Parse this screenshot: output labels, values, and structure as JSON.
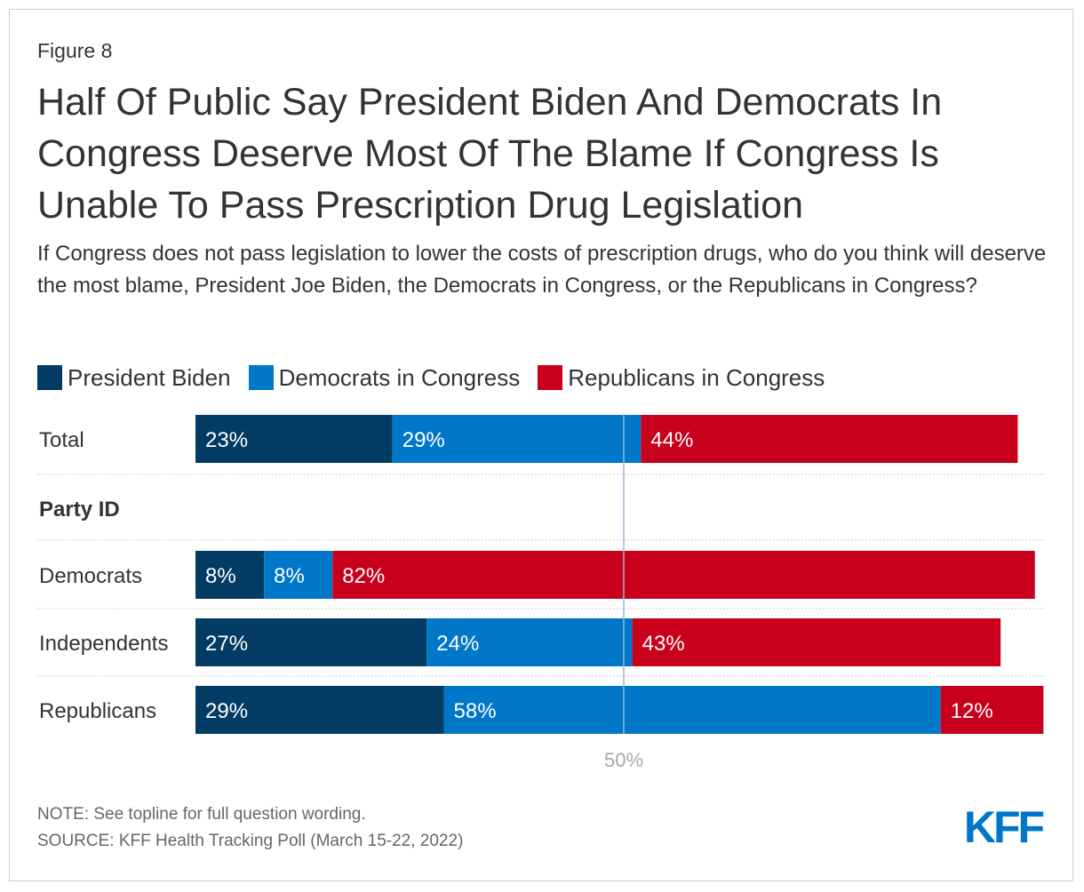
{
  "figure_label": "Figure 8",
  "title": "Half Of Public Say President Biden And Democrats In Congress Deserve Most Of The Blame If Congress Is Unable To Pass Prescription Drug Legislation",
  "subtitle": "If Congress does not pass legislation to lower the costs of prescription drugs, who do you think will deserve the most blame, President Joe Biden, the Democrats in Congress, or the Republicans in Congress?",
  "note": "NOTE: See topline for full question wording.",
  "source": "SOURCE: KFF Health Tracking Poll (March 15-22, 2022)",
  "logo": "KFF",
  "colors": {
    "biden": "#023b63",
    "dems": "#0077c8",
    "reps": "#c9001b",
    "logo": "#0077c8",
    "refline": "#9bb7cf"
  },
  "chart_data": {
    "type": "bar",
    "orientation": "horizontal",
    "stacked": true,
    "title": "Half Of Public Say President Biden And Democrats In Congress Deserve Most Of The Blame If Congress Is Unable To Pass Prescription Drug Legislation",
    "xlim": [
      0,
      100
    ],
    "reference_line": {
      "value": 50,
      "label": "50%"
    },
    "legend_position": "top-left",
    "series": [
      {
        "name": "President Biden",
        "key": "biden"
      },
      {
        "name": "Democrats in Congress",
        "key": "dems"
      },
      {
        "name": "Republicans in Congress",
        "key": "reps"
      }
    ],
    "rows": [
      {
        "label": "Total",
        "values": [
          23,
          29,
          44
        ]
      },
      {
        "label": "Party ID",
        "section_header": true
      },
      {
        "label": "Democrats",
        "values": [
          8,
          8,
          82
        ]
      },
      {
        "label": "Independents",
        "values": [
          27,
          24,
          43
        ]
      },
      {
        "label": "Republicans",
        "values": [
          29,
          58,
          12
        ]
      }
    ]
  }
}
